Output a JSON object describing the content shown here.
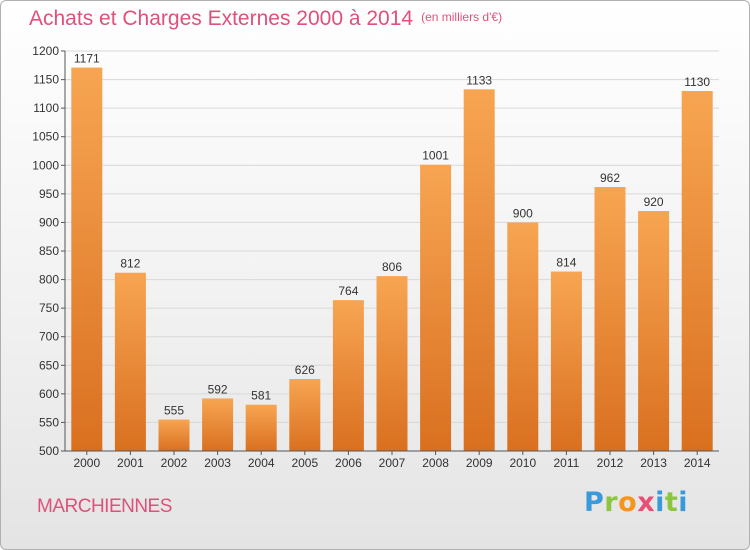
{
  "title": "Achats et Charges Externes 2000 à 2014",
  "unit_note": "(en milliers d'€)",
  "town": "MARCHIENNES",
  "logo": {
    "letters": [
      "P",
      "r",
      "o",
      "x",
      "i",
      "t",
      "i"
    ]
  },
  "colors": {
    "title": "#e0507a",
    "bar_top": "#f7a552",
    "bar_bottom": "#d97020",
    "grid": "#d8d8d8"
  },
  "chart_data": {
    "type": "bar",
    "categories": [
      "2000",
      "2001",
      "2002",
      "2003",
      "2004",
      "2005",
      "2006",
      "2007",
      "2008",
      "2009",
      "2010",
      "2011",
      "2012",
      "2013",
      "2014"
    ],
    "values": [
      1171,
      812,
      555,
      592,
      581,
      626,
      764,
      806,
      1001,
      1133,
      900,
      814,
      962,
      920,
      1130
    ],
    "ylim": [
      500,
      1200
    ],
    "yticks": [
      500,
      550,
      600,
      650,
      700,
      750,
      800,
      850,
      900,
      950,
      1000,
      1050,
      1100,
      1150,
      1200
    ],
    "grid": true,
    "legend": "none",
    "data_labels": true
  }
}
